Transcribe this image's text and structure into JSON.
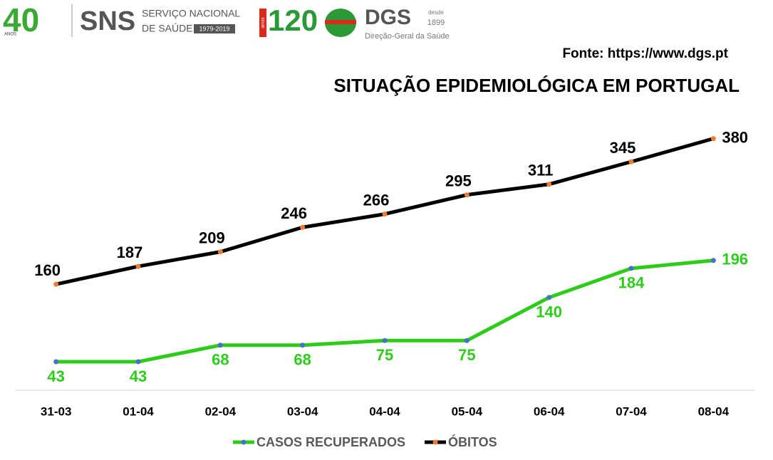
{
  "header": {
    "logo_40": "40",
    "anos": "ANOS",
    "sns": "SNS",
    "sns_line1": "SERVIÇO NACIONAL",
    "sns_line2": "DE SAÚDE",
    "sns_years": "1979-2019",
    "logo_120": "120",
    "anos_120": "anos",
    "dgs": "DGS",
    "desde": "desde",
    "since_year": "1899",
    "dgs_name": "Direção-Geral da Saúde"
  },
  "chart_data": {
    "type": "line",
    "source": "Fonte: https://www.dgs.pt",
    "title": "SITUAÇÃO EPIDEMIOLÓGICA EM PORTUGAL",
    "categories": [
      "31-03",
      "01-04",
      "02-04",
      "03-04",
      "04-04",
      "05-04",
      "06-04",
      "07-04",
      "08-04"
    ],
    "series": [
      {
        "name": "CASOS RECUPERADOS",
        "color": "#2ecc1a",
        "marker_color": "#4472c4",
        "values": [
          43,
          43,
          68,
          68,
          75,
          75,
          140,
          184,
          196
        ]
      },
      {
        "name": "ÓBITOS",
        "color": "#000000",
        "marker_color": "#ed7d31",
        "values": [
          160,
          187,
          209,
          246,
          266,
          295,
          311,
          345,
          380
        ]
      }
    ],
    "ylim": [
      0,
      400
    ]
  }
}
